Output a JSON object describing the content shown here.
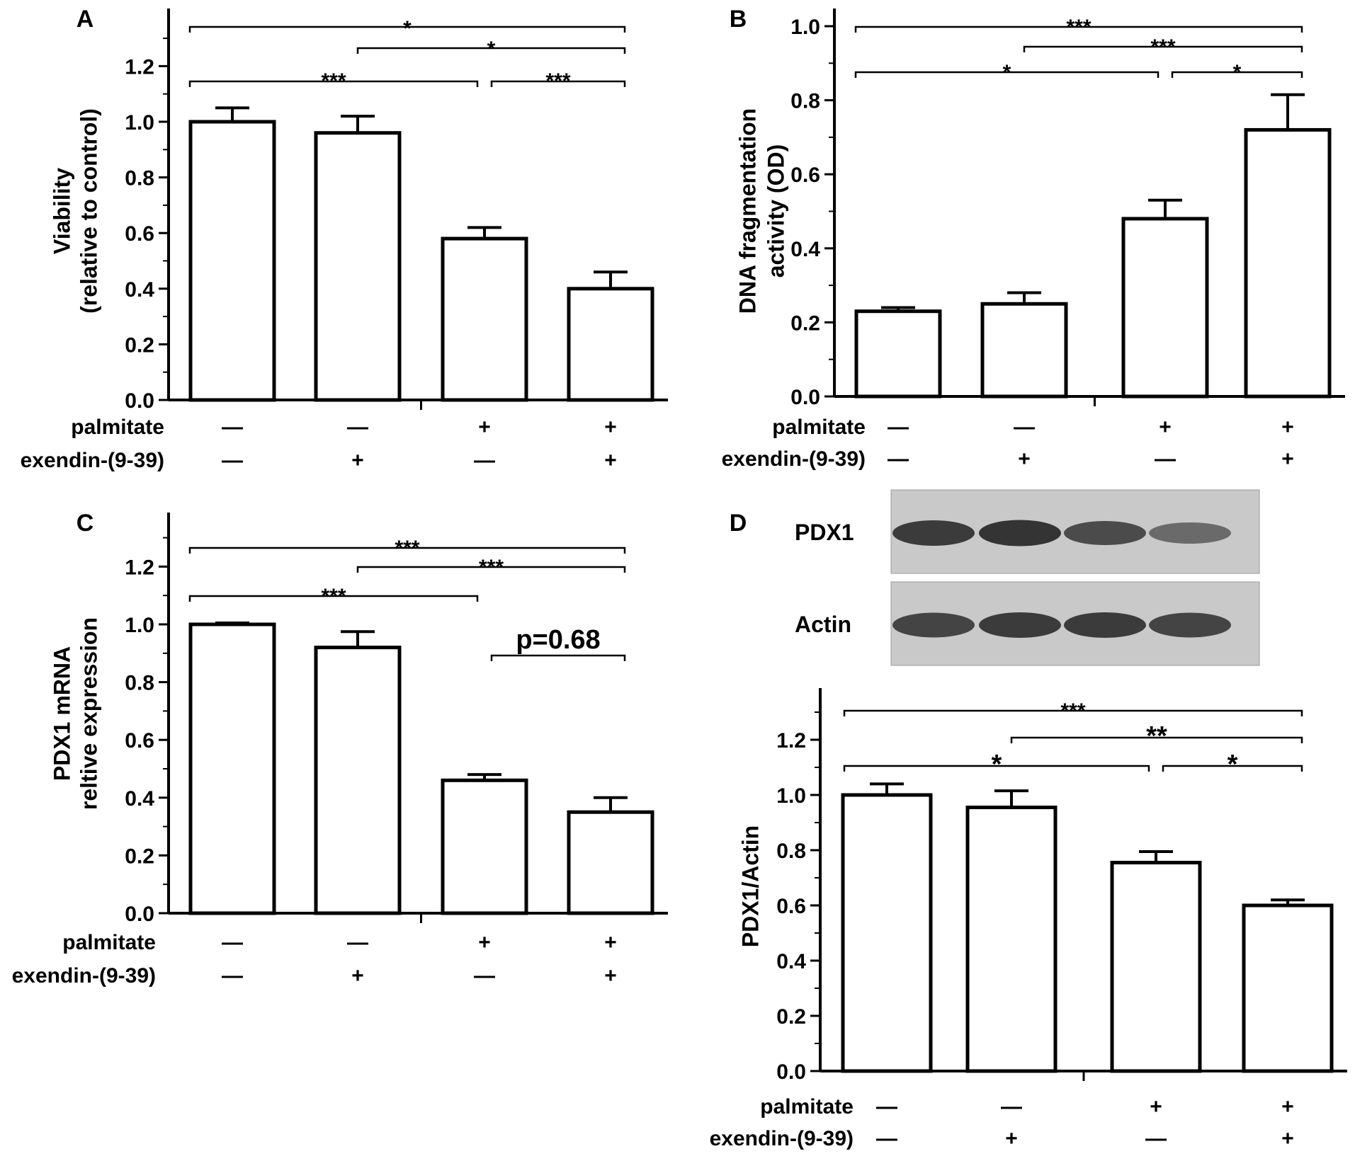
{
  "chart_data": [
    {
      "panel": "A",
      "type": "bar",
      "categories": [
        "1",
        "2",
        "3",
        "4"
      ],
      "values": [
        1.0,
        0.96,
        0.58,
        0.4
      ],
      "errors": [
        0.05,
        0.06,
        0.04,
        0.06
      ],
      "ylabel": [
        "Viability",
        "(relative to control)"
      ],
      "ylim": [
        0,
        1.35
      ],
      "yticks": [
        "0.0",
        "0.2",
        "0.4",
        "0.6",
        "0.8",
        "1.0",
        "1.2"
      ],
      "conditions": [
        {
          "label": "palmitate",
          "signs": [
            "—",
            "—",
            "+",
            "+"
          ]
        },
        {
          "label": "exendin-(9-39)",
          "signs": [
            "—",
            "+",
            "—",
            "+"
          ]
        }
      ],
      "significance": [
        {
          "from": 1,
          "to": 4,
          "label": "*"
        },
        {
          "from": 2,
          "to": 4,
          "label": "*"
        },
        {
          "from": 1,
          "to": 3,
          "label": "***"
        },
        {
          "from": 3,
          "to": 4,
          "label": "***"
        }
      ]
    },
    {
      "panel": "B",
      "type": "bar",
      "categories": [
        "1",
        "2",
        "3",
        "4"
      ],
      "values": [
        0.23,
        0.25,
        0.48,
        0.72
      ],
      "errors": [
        0.01,
        0.03,
        0.05,
        0.095
      ],
      "ylabel": [
        "DNA fragmentation",
        "activity (OD)"
      ],
      "ylim": [
        0,
        1.0
      ],
      "yticks": [
        "0.0",
        "0.2",
        "0.4",
        "0.6",
        "0.8",
        "1.0"
      ],
      "conditions": [
        {
          "label": "palmitate",
          "signs": [
            "—",
            "—",
            "+",
            "+"
          ]
        },
        {
          "label": "exendin-(9-39)",
          "signs": [
            "—",
            "+",
            "—",
            "+"
          ]
        }
      ],
      "significance": [
        {
          "from": 1,
          "to": 4,
          "label": "***"
        },
        {
          "from": 2,
          "to": 4,
          "label": "***"
        },
        {
          "from": 1,
          "to": 3,
          "label": "*"
        },
        {
          "from": 3,
          "to": 4,
          "label": "*"
        }
      ]
    },
    {
      "panel": "C",
      "type": "bar",
      "categories": [
        "1",
        "2",
        "3",
        "4"
      ],
      "values": [
        1.0,
        0.92,
        0.46,
        0.35
      ],
      "errors": [
        0.005,
        0.055,
        0.02,
        0.05
      ],
      "ylabel": [
        "PDX1 mRNA",
        "reltive expression"
      ],
      "ylim": [
        0,
        1.35
      ],
      "yticks": [
        "0.0",
        "0.2",
        "0.4",
        "0.6",
        "0.8",
        "1.0",
        "1.2"
      ],
      "conditions": [
        {
          "label": "palmitate",
          "signs": [
            "—",
            "—",
            "+",
            "+"
          ]
        },
        {
          "label": "exendin-(9-39)",
          "signs": [
            "—",
            "+",
            "—",
            "+"
          ]
        }
      ],
      "significance": [
        {
          "from": 1,
          "to": 4,
          "label": "***"
        },
        {
          "from": 2,
          "to": 4,
          "label": "***"
        },
        {
          "from": 1,
          "to": 3,
          "label": "***"
        },
        {
          "from": 3,
          "to": 4,
          "label": "p=0.68"
        }
      ]
    },
    {
      "panel": "D",
      "type": "bar",
      "categories": [
        "1",
        "2",
        "3",
        "4"
      ],
      "values": [
        1.0,
        0.955,
        0.755,
        0.6
      ],
      "errors": [
        0.04,
        0.06,
        0.04,
        0.02
      ],
      "ylabel": [
        "PDX1/Actin"
      ],
      "ylim": [
        0,
        1.35
      ],
      "yticks": [
        "0.0",
        "0.2",
        "0.4",
        "0.6",
        "0.8",
        "1.0",
        "1.2"
      ],
      "conditions": [
        {
          "label": "palmitate",
          "signs": [
            "—",
            "—",
            "+",
            "+"
          ]
        },
        {
          "label": "exendin-(9-39)",
          "signs": [
            "—",
            "+",
            "—",
            "+"
          ]
        }
      ],
      "significance": [
        {
          "from": 1,
          "to": 4,
          "label": "***"
        },
        {
          "from": 2,
          "to": 4,
          "label": "**"
        },
        {
          "from": 1,
          "to": 3,
          "label": "*"
        },
        {
          "from": 3,
          "to": 4,
          "label": "*"
        }
      ],
      "blot": {
        "rows": [
          {
            "label": "PDX1",
            "intensity": [
              0.9,
              0.95,
              0.8,
              0.6
            ]
          },
          {
            "label": "Actin",
            "intensity": [
              0.85,
              0.9,
              0.9,
              0.85
            ]
          }
        ]
      }
    }
  ]
}
